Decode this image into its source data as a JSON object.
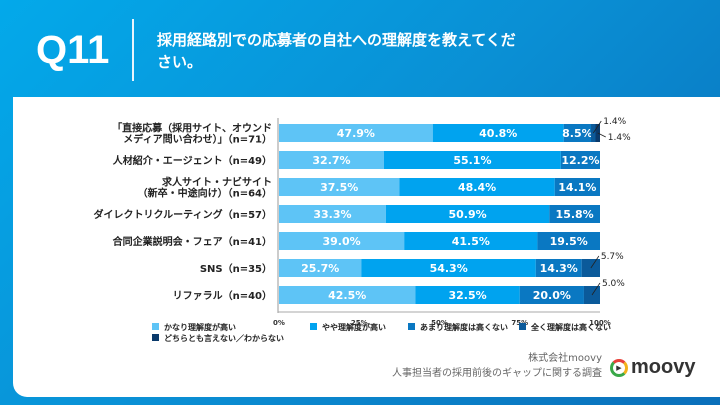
{
  "header": {
    "q": "Q11",
    "title": "採用経路別での応募者の自社への理解度を教えてください。"
  },
  "colors": [
    "#5ec4f6",
    "#00a3ef",
    "#0a78c2",
    "#0b5a9a",
    "#0a3a6b"
  ],
  "chart_data": {
    "type": "bar",
    "orientation": "horizontal",
    "stacked": true,
    "categories": [
      [
        "「直接応募（採用サイト、オウンド",
        "メディア問い合わせ）」（n=71）"
      ],
      [
        "人材紹介・エージェント（n=49）"
      ],
      [
        "求人サイト・ナビサイト",
        "（新卒・中途向け）（n=64）"
      ],
      [
        "ダイレクトリクルーティング（n=57）"
      ],
      [
        "合同企業説明会・フェア（n=41）"
      ],
      [
        "SNS（n=35）"
      ],
      [
        "リファラル（n=40）"
      ]
    ],
    "series": [
      {
        "name": "かなり理解度が高い",
        "values": [
          47.9,
          32.7,
          37.5,
          33.3,
          39.0,
          25.7,
          42.5
        ]
      },
      {
        "name": "やや理解度が高い",
        "values": [
          40.8,
          55.1,
          48.4,
          50.9,
          41.5,
          54.3,
          32.5
        ]
      },
      {
        "name": "あまり理解度は高くない",
        "values": [
          8.5,
          12.2,
          14.1,
          15.8,
          19.5,
          14.3,
          20.0
        ]
      },
      {
        "name": "全く理解度は高くない",
        "values": [
          1.4,
          0,
          0,
          0,
          0,
          5.7,
          5.0
        ]
      },
      {
        "name": "どちらとも言えない／わからない",
        "values": [
          1.4,
          0,
          0,
          0,
          0,
          0,
          0
        ]
      }
    ],
    "xticks": [
      "0%",
      "25%",
      "50%",
      "75%",
      "100%"
    ],
    "xlim": [
      0,
      100
    ],
    "legend": "bottom"
  },
  "source": {
    "company": "株式会社moovy",
    "survey": "人事担当者の採用前後のギャップに関する調査"
  },
  "logo": "moovy"
}
